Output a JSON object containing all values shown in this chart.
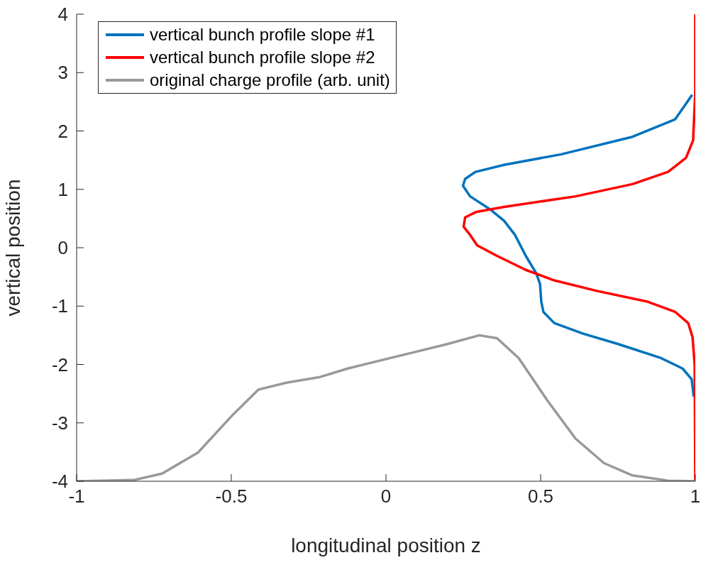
{
  "chart_data": {
    "type": "line",
    "xlabel": "longitudinal position z",
    "ylabel": "vertical position",
    "xlim": [
      -1,
      1
    ],
    "ylim": [
      -4,
      4
    ],
    "xticks": [
      -1,
      -0.5,
      0,
      0.5,
      1
    ],
    "yticks": [
      -4,
      -3,
      -2,
      -1,
      0,
      1,
      2,
      3,
      4
    ],
    "legend": "top left",
    "marker": "none",
    "line_style": "solid",
    "series": [
      {
        "name": "vertical bunch profile slope #1",
        "color": "#0072bd",
        "x": [
          0.99,
          0.935,
          0.797,
          0.567,
          0.382,
          0.29,
          0.256,
          0.249,
          0.272,
          0.336,
          0.382,
          0.417,
          0.452,
          0.486,
          0.498,
          0.502,
          0.509,
          0.544,
          0.636,
          0.751,
          0.889,
          0.959,
          0.988,
          0.995
        ],
        "values": [
          2.62,
          2.2,
          1.9,
          1.6,
          1.42,
          1.3,
          1.18,
          1.06,
          0.88,
          0.66,
          0.46,
          0.22,
          -0.14,
          -0.44,
          -0.62,
          -0.92,
          -1.1,
          -1.29,
          -1.47,
          -1.65,
          -1.89,
          -2.07,
          -2.25,
          -2.55
        ]
      },
      {
        "name": "vertical bunch profile slope #2",
        "color": "#ff0000",
        "x": [
          1,
          1,
          0.993,
          0.97,
          0.912,
          0.797,
          0.613,
          0.382,
          0.29,
          0.256,
          0.251,
          0.272,
          0.295,
          0.359,
          0.452,
          0.544,
          0.682,
          0.843,
          0.935,
          0.977,
          0.991,
          0.998,
          1
        ],
        "values": [
          4,
          2.68,
          1.84,
          1.54,
          1.3,
          1.09,
          0.88,
          0.7,
          0.61,
          0.52,
          0.36,
          0.22,
          0.04,
          -0.14,
          -0.38,
          -0.56,
          -0.74,
          -0.92,
          -1.1,
          -1.29,
          -1.53,
          -2.0,
          -4
        ]
      },
      {
        "name": "original charge profile (arb. unit)",
        "color": "#999999",
        "x": [
          -1,
          -0.816,
          -0.724,
          -0.608,
          -0.493,
          -0.412,
          -0.32,
          -0.217,
          -0.124,
          -0.009,
          0.106,
          0.198,
          0.302,
          0.359,
          0.429,
          0.521,
          0.613,
          0.705,
          0.797,
          0.912,
          1
        ],
        "values": [
          -4,
          -3.98,
          -3.87,
          -3.51,
          -2.85,
          -2.43,
          -2.31,
          -2.22,
          -2.07,
          -1.92,
          -1.77,
          -1.65,
          -1.5,
          -1.55,
          -1.89,
          -2.61,
          -3.27,
          -3.69,
          -3.9,
          -3.99,
          -4
        ]
      }
    ]
  }
}
